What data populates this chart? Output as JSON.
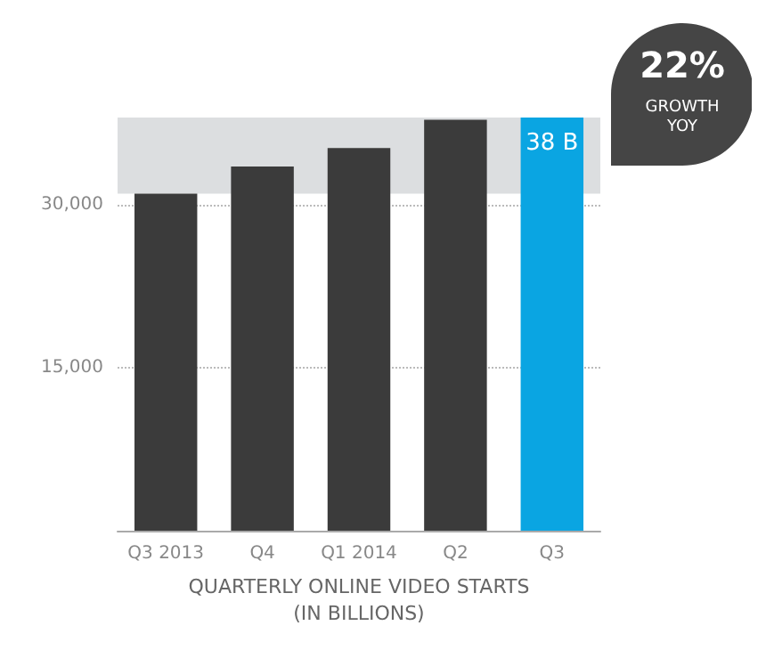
{
  "chart_data": {
    "type": "bar",
    "xlabel": "QUARTERLY ONLINE VIDEO STARTS\n(IN BILLIONS)",
    "categories": [
      "Q3 2013",
      "Q4",
      "Q1 2014",
      "Q2",
      "Q3"
    ],
    "values": [
      31000,
      33500,
      35200,
      37800,
      38000
    ],
    "colors": [
      "#3b3b3b",
      "#3b3b3b",
      "#3b3b3b",
      "#3b3b3b",
      "#0aa5e2"
    ],
    "ylim": [
      0,
      38000
    ],
    "yticks": [
      {
        "value": 15000,
        "label": "15,000"
      },
      {
        "value": 30000,
        "label": "30,000"
      }
    ],
    "grid": "y",
    "bands": [
      {
        "axis": "y",
        "from": 31000,
        "to": 38000,
        "color": "#dcdee0"
      }
    ],
    "annotations": [
      "22%",
      "GROWTH\nYOY",
      {
        "text": "38 B",
        "x": "Q3",
        "y": 38000
      }
    ]
  }
}
